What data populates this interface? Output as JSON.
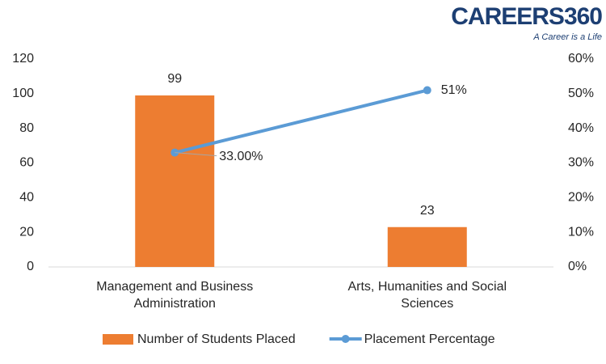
{
  "logo": {
    "text": "CAREERS360",
    "tagline": "A Career is a Life"
  },
  "chart_data": {
    "type": "combo",
    "categories": [
      "Management and Business Administration",
      "Arts, Humanities and Social Sciences"
    ],
    "series": [
      {
        "name": "Number of Students Placed",
        "type": "bar",
        "color": "#ed7d31",
        "values": [
          99,
          23
        ]
      },
      {
        "name": "Placement Percentage",
        "type": "line",
        "axis": "y2",
        "color": "#5b9bd5",
        "values": [
          33,
          51
        ],
        "value_labels": [
          "33.00%",
          "51%"
        ]
      }
    ],
    "ylim": [
      0,
      120
    ],
    "yticks": [
      0,
      20,
      40,
      60,
      80,
      100,
      120
    ],
    "y2lim": [
      0,
      60
    ],
    "y2ticks": [
      {
        "value": 0,
        "label": "0%"
      },
      {
        "value": 10,
        "label": "10%"
      },
      {
        "value": 20,
        "label": "20%"
      },
      {
        "value": 30,
        "label": "30%"
      },
      {
        "value": 40,
        "label": "40%"
      },
      {
        "value": 50,
        "label": "50%"
      },
      {
        "value": 60,
        "label": "60%"
      }
    ],
    "grid": false,
    "legend": "bottom"
  }
}
